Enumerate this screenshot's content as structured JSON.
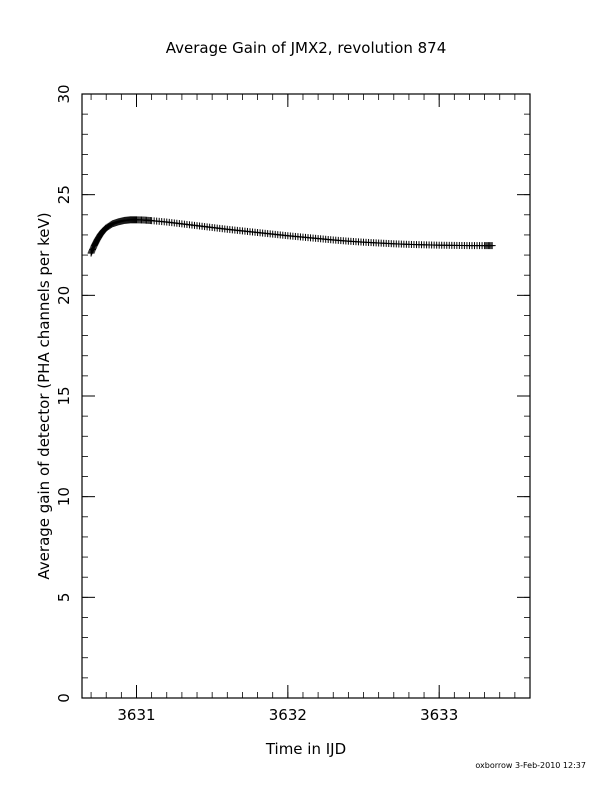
{
  "chart_data": {
    "type": "scatter",
    "title": "Average Gain of JMX2, revolution 874",
    "xlabel": "Time in IJD",
    "ylabel": "Average gain of detector (PHA channels per keV)",
    "xlim": [
      3630.64,
      3633.6
    ],
    "ylim": [
      0,
      30
    ],
    "xticks": [
      3631,
      3632,
      3633
    ],
    "yticks": [
      0,
      5,
      10,
      15,
      20,
      25,
      30
    ],
    "xticks_minor_step": 0.1,
    "yticks_minor_step": 1,
    "grid": false,
    "marker": "+",
    "color": "#000000",
    "series": [
      {
        "x": [
          3630.7,
          3630.72,
          3630.74,
          3630.76,
          3630.78,
          3630.8,
          3630.84,
          3630.88,
          3630.92,
          3630.96,
          3631.0,
          3631.05,
          3631.1,
          3631.2,
          3631.3,
          3631.4,
          3631.5,
          3631.6,
          3631.7,
          3631.8,
          3631.9,
          3632.0,
          3632.1,
          3632.2,
          3632.3,
          3632.4,
          3632.5,
          3632.6,
          3632.7,
          3632.8,
          3632.9,
          3633.0,
          3633.1,
          3633.2,
          3633.3,
          3633.35
        ],
        "y": [
          22.1,
          22.45,
          22.75,
          23.0,
          23.2,
          23.35,
          23.55,
          23.65,
          23.72,
          23.75,
          23.75,
          23.74,
          23.71,
          23.64,
          23.55,
          23.46,
          23.37,
          23.28,
          23.2,
          23.12,
          23.04,
          22.96,
          22.89,
          22.82,
          22.75,
          22.69,
          22.64,
          22.6,
          22.56,
          22.53,
          22.51,
          22.49,
          22.48,
          22.47,
          22.47,
          22.47
        ]
      }
    ]
  },
  "footer": {
    "credit": "oxborrow  3-Feb-2010 12:37"
  }
}
